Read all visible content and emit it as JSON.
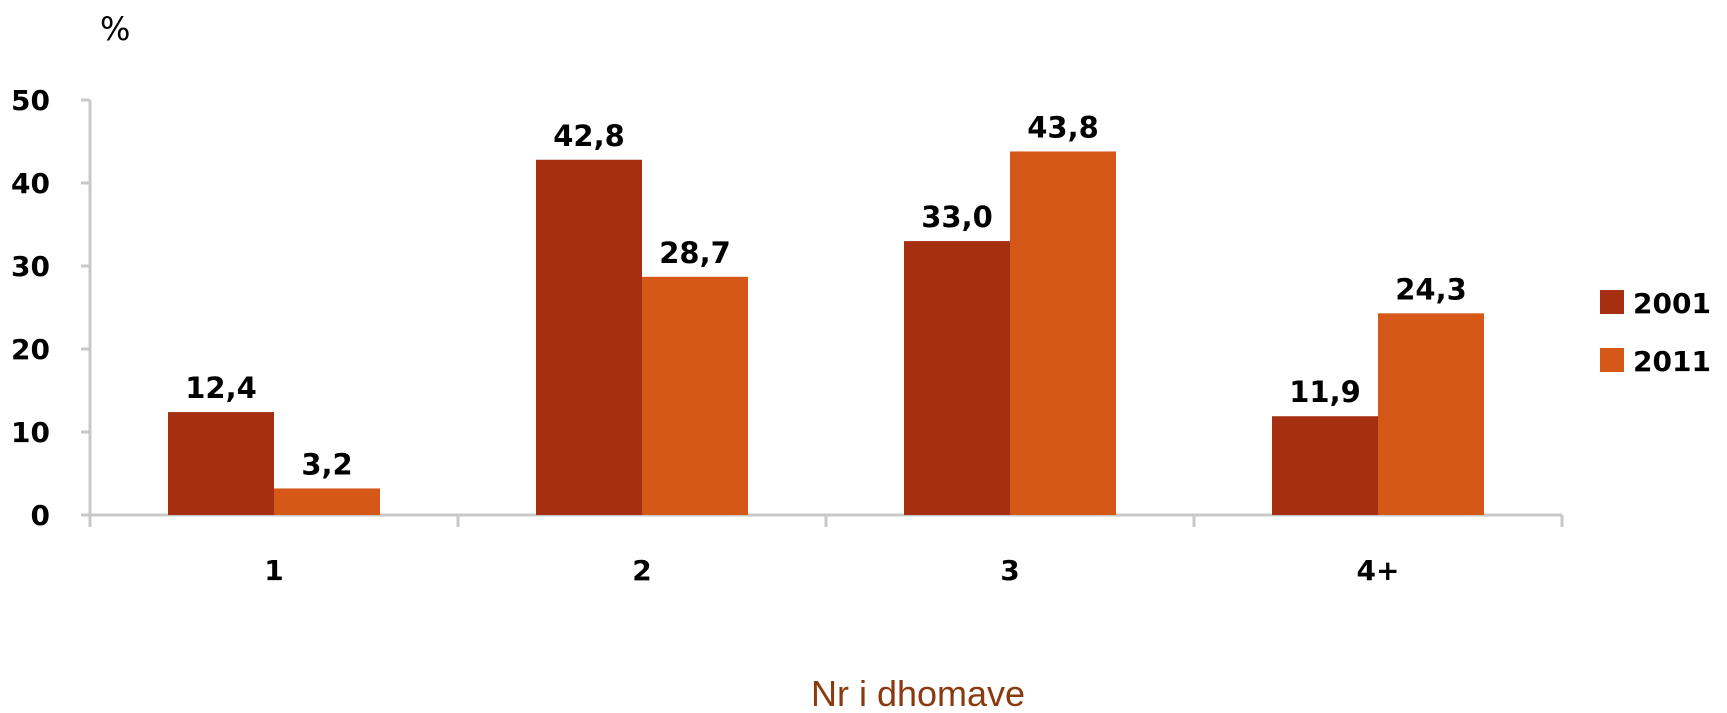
{
  "chart_data": {
    "type": "bar",
    "title": "",
    "ylabel": "%",
    "xlabel": "Nr i dhomave",
    "categories": [
      "1",
      "2",
      "3",
      "4+"
    ],
    "series": [
      {
        "name": "2001",
        "values": [
          12.4,
          42.8,
          33.0,
          11.9
        ],
        "labels": [
          "12,4",
          "42,8",
          "33,0",
          "11,9"
        ],
        "color": "#a52f10"
      },
      {
        "name": "2011",
        "values": [
          3.2,
          28.7,
          43.8,
          24.3
        ],
        "labels": [
          "3,2",
          "28,7",
          "43,8",
          "24,3"
        ],
        "color": "#d55818"
      }
    ],
    "ylim": [
      0,
      50
    ],
    "yticks": [
      0,
      10,
      20,
      30,
      40,
      50
    ],
    "grid": false,
    "legend": "right",
    "xlabel_color": "#8b3a10"
  }
}
